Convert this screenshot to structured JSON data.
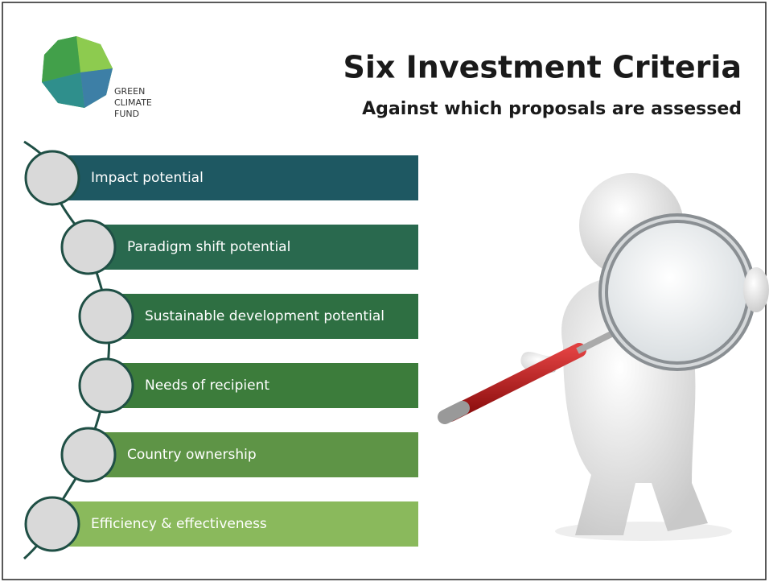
{
  "logo": {
    "lines": [
      "GREEN",
      "CLIMATE",
      "FUND"
    ]
  },
  "title": "Six Investment Criteria",
  "subtitle": "Against which proposals are assessed",
  "criteria": [
    "Impact potential",
    "Paradigm shift potential",
    "Sustainable development potential",
    "Needs of recipient",
    "Country ownership",
    "Efficiency & effectiveness"
  ]
}
